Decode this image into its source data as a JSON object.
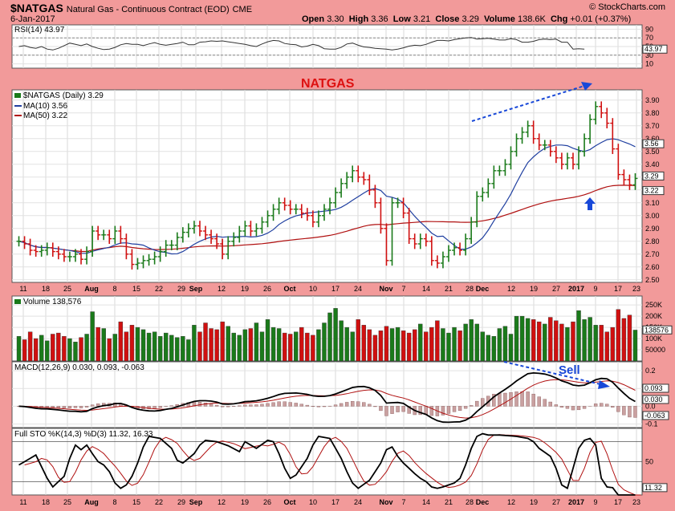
{
  "header": {
    "symbol": "$NATGAS",
    "description": "Natural Gas - Continuous Contract (EOD)",
    "exchange": "CME",
    "date": "6-Jan-2017",
    "open_label": "Open",
    "open": "3.30",
    "high_label": "High",
    "high": "3.36",
    "low_label": "Low",
    "low": "3.21",
    "close_label": "Close",
    "close": "3.29",
    "volume_label": "Volume",
    "volume": "138.6K",
    "chg_label": "Chg",
    "chg": "+0.01 (+0.37%)",
    "brand": "© StockCharts.com"
  },
  "colors": {
    "frame": "#f29a9a",
    "panel": "#ffffff",
    "up": "#1a7a1a",
    "down": "#d01010",
    "ma10": "#1f3fa0",
    "ma50": "#b01010",
    "annotation_blue": "#1848d8",
    "annotation_red": "#dd1111"
  },
  "annotations": {
    "natgas": "NATGAS",
    "sell": "Sell"
  },
  "x_axis": {
    "labels": [
      "11",
      "18",
      "25",
      "Aug",
      "8",
      "15",
      "22",
      "29",
      "Sep",
      "12",
      "19",
      "26",
      "Oct",
      "10",
      "17",
      "24",
      "Nov",
      "7",
      "14",
      "21",
      "28",
      "Dec",
      "12",
      "19",
      "27",
      "2017",
      "9",
      "17",
      "23"
    ],
    "bold": [
      "Aug",
      "Sep",
      "Oct",
      "Nov",
      "Dec",
      "2017"
    ]
  },
  "chart_data": [
    {
      "type": "line",
      "name": "RSI(14)",
      "legend": "RSI(14) 43.97",
      "last_value": "43.97",
      "ylim": [
        0,
        100
      ],
      "ticks": [
        "10",
        "30",
        "50",
        "70",
        "90"
      ],
      "levels": [
        30,
        70
      ],
      "values": [
        50,
        52,
        48,
        46,
        50,
        44,
        42,
        46,
        52,
        58,
        55,
        52,
        56,
        50,
        46,
        43,
        44,
        48,
        54,
        57,
        55,
        55,
        52,
        56,
        59,
        55,
        53,
        55,
        57,
        60,
        54,
        54,
        60,
        61,
        63,
        62,
        63,
        61,
        59,
        57,
        55,
        52,
        50,
        56,
        61,
        64,
        63,
        57,
        55,
        54,
        49,
        51,
        55,
        52,
        45,
        44,
        44,
        48,
        56,
        58,
        53,
        49,
        48,
        46,
        45,
        44,
        42,
        44,
        47,
        51,
        53,
        52,
        55,
        60,
        64,
        64,
        63,
        66,
        68,
        70,
        71,
        67,
        68,
        69,
        67,
        65,
        65,
        68,
        66,
        60,
        60,
        62,
        66,
        67,
        66,
        67,
        60,
        60,
        44,
        45,
        44
      ]
    },
    {
      "type": "ohlc",
      "name": "$NATGAS (Daily)",
      "legend": "$NATGAS (Daily) 3.29",
      "ylim": [
        2.48,
        3.98
      ],
      "ticks": [
        "2.50",
        "2.60",
        "2.70",
        "2.80",
        "2.90",
        "3.00",
        "3.10",
        "3.20",
        "3.30",
        "3.40",
        "3.50",
        "3.60",
        "3.70",
        "3.80",
        "3.90"
      ],
      "price_labels": [
        "3.56",
        "3.29",
        "3.22"
      ],
      "close": [
        2.8,
        2.78,
        2.73,
        2.72,
        2.73,
        2.75,
        2.72,
        2.7,
        2.68,
        2.68,
        2.7,
        2.66,
        2.72,
        2.88,
        2.85,
        2.85,
        2.82,
        2.88,
        2.82,
        2.7,
        2.62,
        2.63,
        2.65,
        2.66,
        2.68,
        2.72,
        2.77,
        2.77,
        2.83,
        2.87,
        2.9,
        2.92,
        2.88,
        2.85,
        2.82,
        2.78,
        2.7,
        2.8,
        2.83,
        2.88,
        2.92,
        2.88,
        2.9,
        2.95,
        3.0,
        3.05,
        3.1,
        3.08,
        3.05,
        3.05,
        3.02,
        3.0,
        2.95,
        3.0,
        3.05,
        3.1,
        3.18,
        3.25,
        3.3,
        3.35,
        3.3,
        3.28,
        3.2,
        3.1,
        2.9,
        2.65,
        3.1,
        3.1,
        3.02,
        2.82,
        2.78,
        2.82,
        2.8,
        2.65,
        2.63,
        2.68,
        2.73,
        2.75,
        2.73,
        2.82,
        2.95,
        3.15,
        3.18,
        3.25,
        3.35,
        3.35,
        3.4,
        3.5,
        3.6,
        3.65,
        3.7,
        3.6,
        3.55,
        3.55,
        3.5,
        3.45,
        3.4,
        3.45,
        3.4,
        3.5,
        3.6,
        3.75,
        3.85,
        3.8,
        3.72,
        3.52,
        3.32,
        3.28,
        3.24,
        3.29
      ],
      "ma10_legend": "MA(10) 3.56",
      "ma50_legend": "MA(50) 3.22"
    },
    {
      "type": "bar",
      "name": "Volume",
      "legend": "Volume 138,576",
      "last_value": "138576",
      "ylim": [
        0,
        290000
      ],
      "ticks": [
        "50000",
        "100K",
        "150K",
        "200K",
        "250K"
      ],
      "values": [
        110,
        95,
        130,
        100,
        115,
        90,
        120,
        125,
        110,
        100,
        85,
        105,
        120,
        220,
        150,
        145,
        100,
        120,
        175,
        130,
        160,
        150,
        140,
        125,
        130,
        110,
        125,
        115,
        105,
        110,
        95,
        160,
        130,
        170,
        145,
        140,
        175,
        155,
        125,
        115,
        140,
        145,
        170,
        130,
        185,
        150,
        145,
        125,
        120,
        130,
        150,
        125,
        115,
        140,
        170,
        215,
        235,
        180,
        150,
        130,
        185,
        160,
        140,
        115,
        135,
        155,
        145,
        150,
        135,
        125,
        140,
        165,
        130,
        150,
        180,
        145,
        125,
        150,
        135,
        165,
        185,
        165,
        130,
        115,
        110,
        145,
        155,
        120,
        200,
        200,
        190,
        185,
        175,
        165,
        195,
        180,
        165,
        150,
        175,
        225,
        185,
        195,
        160,
        160,
        130,
        150,
        230,
        190,
        205,
        138
      ]
    },
    {
      "type": "line",
      "name": "MACD(12,26,9)",
      "legend": "MACD(12,26,9) 0.030, 0.093, -0.063",
      "ylim": [
        -0.12,
        0.25
      ],
      "ticks": [
        "-0.1",
        "0.0",
        "0.1",
        "0.2"
      ],
      "value_labels": [
        "0.093",
        "0.030",
        "-0.063"
      ]
    },
    {
      "type": "line",
      "name": "Full STO %K(14,3) %D(3)",
      "legend": "Full STO %K(14,3) %D(3) 11.32, 16.33",
      "ylim": [
        0,
        100
      ],
      "ticks": [
        "50"
      ],
      "levels": [
        20,
        50,
        80
      ],
      "last_value": "11.32",
      "points": [
        [
          0,
          45
        ],
        [
          3,
          60
        ],
        [
          5,
          25
        ],
        [
          6,
          12
        ],
        [
          8,
          28
        ],
        [
          9,
          55
        ],
        [
          10,
          75
        ],
        [
          11,
          68
        ],
        [
          12,
          75
        ],
        [
          13,
          62
        ],
        [
          14,
          50
        ],
        [
          15,
          45
        ],
        [
          16,
          35
        ],
        [
          17,
          18
        ],
        [
          18,
          10
        ],
        [
          19,
          15
        ],
        [
          20,
          28
        ],
        [
          21,
          48
        ],
        [
          22,
          72
        ],
        [
          23,
          88
        ],
        [
          25,
          85
        ],
        [
          27,
          70
        ],
        [
          28,
          52
        ],
        [
          29,
          48
        ],
        [
          31,
          62
        ],
        [
          32,
          75
        ],
        [
          33,
          82
        ],
        [
          35,
          80
        ],
        [
          37,
          74
        ],
        [
          39,
          65
        ],
        [
          40,
          80
        ],
        [
          42,
          70
        ],
        [
          44,
          82
        ],
        [
          45,
          80
        ],
        [
          46,
          62
        ],
        [
          47,
          40
        ],
        [
          48,
          25
        ],
        [
          49,
          30
        ],
        [
          51,
          55
        ],
        [
          52,
          75
        ],
        [
          53,
          88
        ],
        [
          55,
          85
        ],
        [
          57,
          55
        ],
        [
          58,
          35
        ],
        [
          59,
          18
        ],
        [
          60,
          10
        ],
        [
          62,
          22
        ],
        [
          63,
          35
        ],
        [
          64,
          48
        ],
        [
          65,
          68
        ],
        [
          66,
          72
        ],
        [
          67,
          58
        ],
        [
          68,
          48
        ],
        [
          70,
          32
        ],
        [
          71,
          25
        ],
        [
          72,
          20
        ],
        [
          73,
          12
        ],
        [
          74,
          10
        ],
        [
          75,
          12
        ],
        [
          76,
          15
        ],
        [
          77,
          18
        ],
        [
          78,
          25
        ],
        [
          79,
          45
        ],
        [
          80,
          70
        ],
        [
          81,
          88
        ],
        [
          82,
          92
        ],
        [
          83,
          90
        ],
        [
          85,
          90
        ],
        [
          88,
          88
        ],
        [
          90,
          85
        ],
        [
          91,
          80
        ],
        [
          92,
          70
        ],
        [
          94,
          58
        ],
        [
          95,
          40
        ],
        [
          96,
          15
        ],
        [
          97,
          10
        ],
        [
          98,
          40
        ],
        [
          99,
          70
        ],
        [
          100,
          82
        ],
        [
          101,
          85
        ],
        [
          102,
          75
        ],
        [
          103,
          25
        ],
        [
          104,
          12
        ],
        [
          105,
          11
        ]
      ]
    }
  ]
}
